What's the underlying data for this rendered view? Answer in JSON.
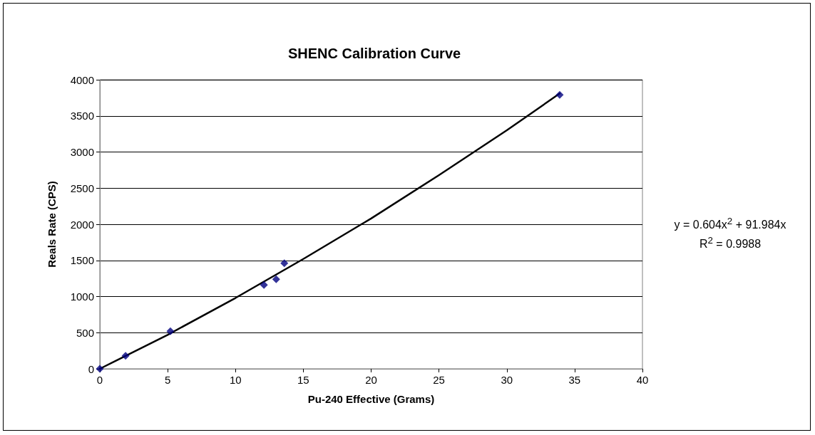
{
  "chart_data": {
    "type": "scatter",
    "title": "SHENC Calibration Curve",
    "xlabel": "Pu-240 Effective (Grams)",
    "ylabel": "Reals Rate (CPS)",
    "xlim": [
      0,
      40
    ],
    "xticks": [
      0,
      5,
      10,
      15,
      20,
      25,
      30,
      35,
      40
    ],
    "ylim": [
      0,
      4000
    ],
    "yticks": [
      0,
      500,
      1000,
      1500,
      2000,
      2500,
      3000,
      3500,
      4000
    ],
    "grid": "y",
    "marker": "diamond",
    "series": [
      {
        "type": "scatter",
        "color": "#000080",
        "x": [
          0,
          1.9,
          5.2,
          12.1,
          13,
          13.6,
          33.9
        ],
        "values": [
          0,
          180,
          520,
          1160,
          1240,
          1460,
          3790
        ]
      },
      {
        "type": "line",
        "color": "#000000",
        "marker": "none",
        "x": [
          0,
          5,
          10,
          15,
          20,
          25,
          30,
          33.9
        ],
        "values": [
          0,
          470,
          980,
          1520,
          2080,
          2680,
          3300,
          3810
        ]
      }
    ],
    "annotations": [
      "y = 0.604x$^{2}$ + 91.984x",
      "R$^{2}$ = 0.9988"
    ]
  }
}
